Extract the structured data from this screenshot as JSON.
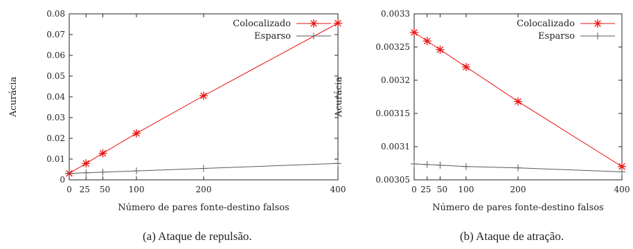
{
  "chart_data": [
    {
      "type": "line",
      "caption": "(a)  Ataque de repulsão.",
      "xlabel": "Número de pares fonte-destino falsos",
      "ylabel": "Acurácia",
      "x": [
        0,
        25,
        50,
        100,
        200,
        400
      ],
      "xticks": [
        "0",
        "25",
        "50",
        "100",
        "200",
        "400"
      ],
      "xlim": [
        0,
        400
      ],
      "ylim": [
        0,
        0.08
      ],
      "yticks": [
        "0",
        "0.01",
        "0.02",
        "0.03",
        "0.04",
        "0.05",
        "0.06",
        "0.07",
        "0.08"
      ],
      "series": [
        {
          "name": "Colocalizado",
          "color": "#e8110f",
          "marker": "star",
          "values": [
            0.0031,
            0.0079,
            0.0128,
            0.0224,
            0.0405,
            0.0755
          ]
        },
        {
          "name": "Esparso",
          "color": "#5a5a5a",
          "marker": "plus",
          "values": [
            0.0031,
            0.0034,
            0.0037,
            0.0043,
            0.0055,
            0.0079
          ]
        }
      ],
      "legend": "top-right"
    },
    {
      "type": "line",
      "caption": "(b)  Ataque de atração.",
      "xlabel": "Número de pares fonte-destino falsos",
      "ylabel": "Acurácia",
      "x": [
        0,
        25,
        50,
        100,
        200,
        400
      ],
      "xticks": [
        "0",
        "25",
        "50",
        "100",
        "200",
        "400"
      ],
      "xlim": [
        0,
        400
      ],
      "ylim": [
        0.00305,
        0.0033
      ],
      "yticks": [
        "0.00305",
        "0.0031",
        "0.00315",
        "0.0032",
        "0.00325",
        "0.0033"
      ],
      "series": [
        {
          "name": "Colocalizado",
          "color": "#e8110f",
          "marker": "star",
          "values": [
            0.003272,
            0.003259,
            0.003246,
            0.00322,
            0.003168,
            0.00307
          ]
        },
        {
          "name": "Esparso",
          "color": "#5a5a5a",
          "marker": "plus",
          "values": [
            0.003074,
            0.003073,
            0.003072,
            0.00307,
            0.003068,
            0.003062
          ]
        }
      ],
      "legend": "top-right"
    }
  ]
}
